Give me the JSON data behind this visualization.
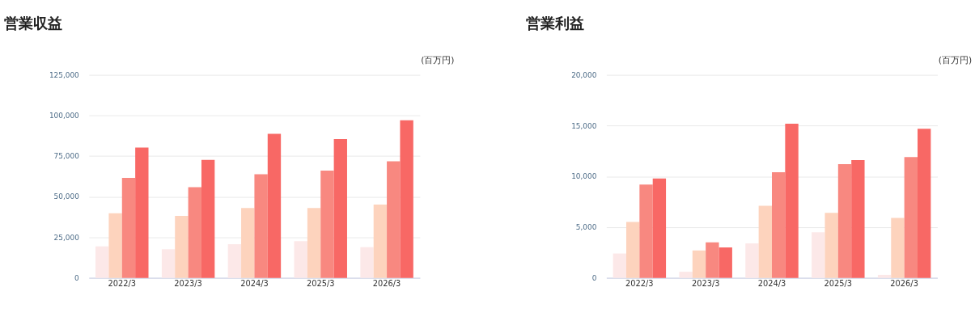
{
  "chart_data": [
    {
      "type": "bar",
      "title": "営業収益",
      "ylabel": "(百万円)",
      "categories": [
        "2022/3",
        "2023/3",
        "2024/3",
        "2025/3",
        "2026/3"
      ],
      "ylim": [
        0,
        125000
      ],
      "yticks": [
        0,
        {
          "value": 25000,
          "label": "25,000"
        },
        {
          "value": 50000,
          "label": "50,000"
        },
        {
          "value": 75000,
          "label": "75,000"
        },
        {
          "value": 100000,
          "label": "100,000"
        },
        {
          "value": 125000,
          "label": "125,000"
        }
      ],
      "grid": "y",
      "series": [
        {
          "color": "#fce8e8",
          "values": [
            19400,
            17600,
            20700,
            22600,
            18900
          ]
        },
        {
          "color": "#fdd3bd",
          "values": [
            39800,
            38200,
            43000,
            43000,
            45200
          ]
        },
        {
          "color": "#f88880",
          "values": [
            61600,
            55900,
            63800,
            66100,
            71800
          ]
        },
        {
          "color": "#f86865",
          "values": [
            80300,
            72600,
            88700,
            85500,
            97100
          ]
        }
      ]
    },
    {
      "type": "bar",
      "title": "営業利益",
      "ylabel": "(百万円)",
      "categories": [
        "2022/3",
        "2023/3",
        "2024/3",
        "2025/3",
        "2026/3"
      ],
      "ylim": [
        0,
        20000
      ],
      "yticks": [
        0,
        {
          "value": 5000,
          "label": "5,000"
        },
        {
          "value": 10000,
          "label": "10,000"
        },
        {
          "value": 15000,
          "label": "15,000"
        },
        {
          "value": 20000,
          "label": "20,000"
        }
      ],
      "grid": "y",
      "series": [
        {
          "color": "#fce8e8",
          "values": [
            2400,
            600,
            3400,
            4500,
            300
          ]
        },
        {
          "color": "#fdd3bd",
          "values": [
            5500,
            2700,
            7100,
            6400,
            5900
          ]
        },
        {
          "color": "#f88880",
          "values": [
            9200,
            3500,
            10400,
            11200,
            11900
          ]
        },
        {
          "color": "#f86865",
          "values": [
            9800,
            3000,
            15200,
            11600,
            14700
          ]
        }
      ]
    }
  ]
}
